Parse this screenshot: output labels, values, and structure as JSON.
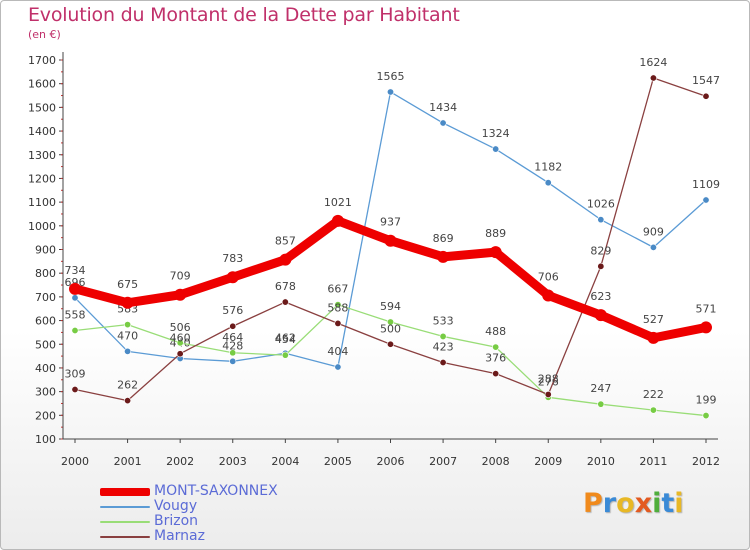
{
  "title": "Evolution du Montant de la Dette par Habitant",
  "subtitle": "(en €)",
  "logo": {
    "text": "Proxiti",
    "letters": [
      {
        "ch": "P",
        "color": "#f08a1c"
      },
      {
        "ch": "r",
        "color": "#3a8ad6"
      },
      {
        "ch": "o",
        "color": "#e8b825"
      },
      {
        "ch": "x",
        "color": "#e35a20"
      },
      {
        "ch": "i",
        "color": "#4fae3c"
      },
      {
        "ch": "t",
        "color": "#3a8ad6"
      },
      {
        "ch": "i",
        "color": "#e8b825"
      }
    ]
  },
  "chart_data": {
    "type": "line",
    "title": "Evolution du Montant de la Dette par Habitant",
    "subtitle": "(en €)",
    "xlabel": "",
    "ylabel": "",
    "x": [
      "2000",
      "2001",
      "2002",
      "2003",
      "2004",
      "2005",
      "2006",
      "2007",
      "2008",
      "2009",
      "2010",
      "2011",
      "2012"
    ],
    "ylim": [
      100,
      1700
    ],
    "yticks": [
      100,
      200,
      300,
      400,
      500,
      600,
      700,
      800,
      900,
      1000,
      1100,
      1200,
      1300,
      1400,
      1500,
      1600,
      1700
    ],
    "grid": false,
    "legend_position": "bottom-left",
    "series": [
      {
        "name": "MONT-SAXONNEX",
        "color": "#ee0000",
        "style": "thick",
        "values": [
          734,
          675,
          709,
          783,
          857,
          1021,
          937,
          869,
          889,
          706,
          623,
          527,
          571
        ],
        "labels": [
          "734",
          "675",
          "709",
          "783",
          "857",
          "1021",
          "937",
          "869",
          "889",
          "706",
          "623",
          "527",
          "571"
        ]
      },
      {
        "name": "Vougy",
        "color": "#5b9bd5",
        "marker": "#4a8ac6",
        "style": "thin",
        "values": [
          696,
          470,
          440,
          428,
          462,
          404,
          1565,
          1434,
          1324,
          1182,
          1026,
          909,
          1109
        ],
        "labels": [
          "696",
          "470",
          "440",
          "428",
          "462",
          "404",
          "1565",
          "1434",
          "1324",
          "1182",
          "1026",
          "909",
          "1109"
        ]
      },
      {
        "name": "Brizon",
        "color": "#99dd77",
        "marker": "#77cc44",
        "style": "thin",
        "values": [
          558,
          583,
          506,
          464,
          454,
          667,
          594,
          533,
          488,
          276,
          247,
          222,
          199
        ],
        "labels": [
          "558",
          "583",
          "506",
          "464",
          "454",
          "667",
          "594",
          "533",
          "488",
          "276",
          "247",
          "222",
          "199"
        ]
      },
      {
        "name": "Marnaz",
        "color": "#8a4040",
        "marker": "#6b1a1a",
        "style": "thin",
        "values": [
          309,
          262,
          460,
          576,
          678,
          588,
          500,
          423,
          376,
          288,
          829,
          1624,
          1547
        ],
        "labels": [
          "309",
          "262",
          "460",
          "576",
          "678",
          "588",
          "500",
          "423",
          "376",
          "288",
          "829",
          "1624",
          "1547"
        ]
      }
    ]
  }
}
